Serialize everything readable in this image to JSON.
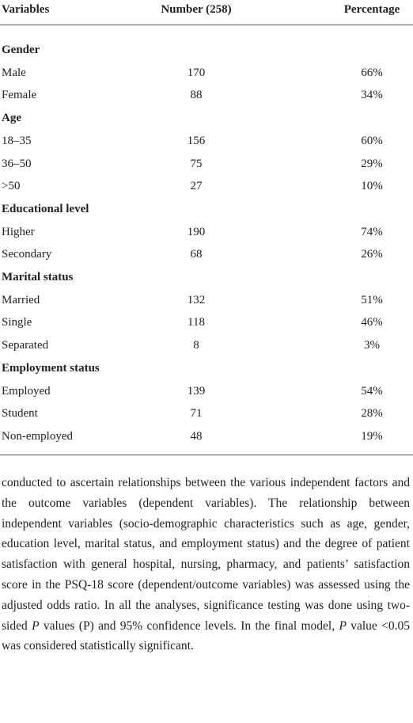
{
  "table": {
    "header": [
      "Variables",
      "Number (258)",
      "Percentage"
    ],
    "sections": [
      {
        "title": "Gender",
        "rows": [
          [
            "Male",
            170,
            "66%"
          ],
          [
            "Female",
            88,
            "34%"
          ]
        ]
      },
      {
        "title": "Age",
        "rows": [
          [
            "18–35",
            156,
            "60%"
          ],
          [
            "36–50",
            75,
            "29%"
          ],
          [
            ">50",
            27,
            "10%"
          ]
        ]
      },
      {
        "title": "Educational level",
        "rows": [
          [
            "Higher",
            190,
            "74%"
          ],
          [
            "Secondary",
            68,
            "26%"
          ]
        ]
      },
      {
        "title": "Marital status",
        "rows": [
          [
            "Married",
            132,
            "51%"
          ],
          [
            "Single",
            118,
            "46%"
          ],
          [
            "Separated",
            8,
            "3%"
          ]
        ]
      },
      {
        "title": "Employment status",
        "rows": [
          [
            "Employed",
            139,
            "54%"
          ],
          [
            "Student",
            71,
            "28%"
          ],
          [
            "Non-employed",
            48,
            "19%"
          ]
        ]
      }
    ]
  },
  "paragraph": [
    {
      "text": "conducted to ascertain relationships between the various independent factors and the outcome variables (dependent variables). The relationship between independent variables (socio-demographic characteristics such as age, gender, education level, marital status, and employment status) and the degree of patient satisfaction with general hospital, nursing, pharmacy, and patients’ satisfaction score in the PSQ-18 score (dependent/outcome variables) was assessed using the adjusted odds ratio. In all the analyses, significance testing was done using two-sided "
    },
    {
      "text": "P",
      "italic": true
    },
    {
      "text": " values (P) and 95% confidence levels. In the final model, "
    },
    {
      "text": "P",
      "italic": true
    },
    {
      "text": " value <0.05 was considered statistically significant."
    }
  ]
}
